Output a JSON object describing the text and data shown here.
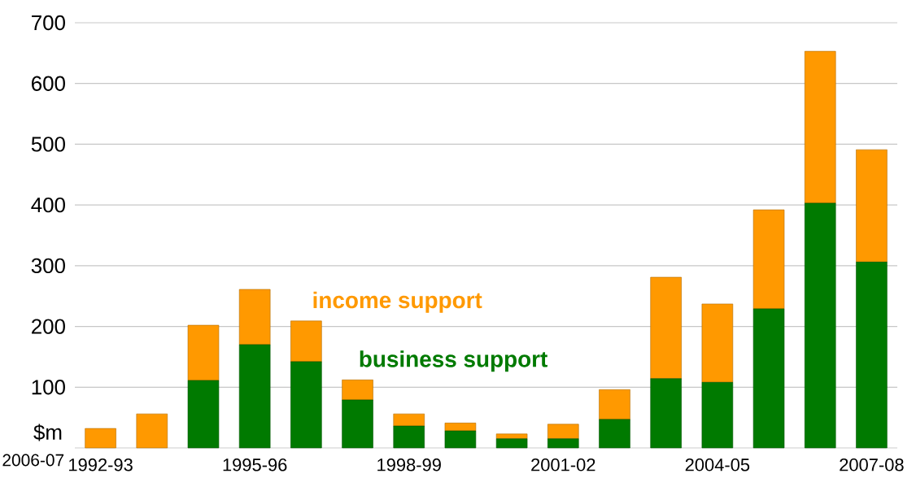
{
  "chart_data": {
    "type": "bar",
    "stacked": true,
    "categories": [
      "1992-93",
      null,
      null,
      "1995-96",
      null,
      null,
      "1998-99",
      null,
      null,
      "2001-02",
      null,
      null,
      "2004-05",
      null,
      null,
      "2007-08"
    ],
    "series": [
      {
        "name": "business support",
        "color": "#007a00",
        "values": [
          0,
          0,
          111,
          170,
          142,
          79,
          36,
          28,
          15,
          15,
          47,
          114,
          108,
          229,
          403,
          306
        ]
      },
      {
        "name": "income support",
        "color": "#ff9900",
        "values": [
          32,
          56,
          91,
          91,
          67,
          33,
          20,
          13,
          8,
          24,
          49,
          167,
          129,
          163,
          250,
          185
        ]
      }
    ],
    "ylabel": "$m",
    "annotations": [
      "2006-07"
    ],
    "ylim": [
      0,
      700
    ],
    "yticks": [
      100,
      200,
      300,
      400,
      500,
      600,
      700
    ],
    "grid": "y",
    "legend": false
  }
}
